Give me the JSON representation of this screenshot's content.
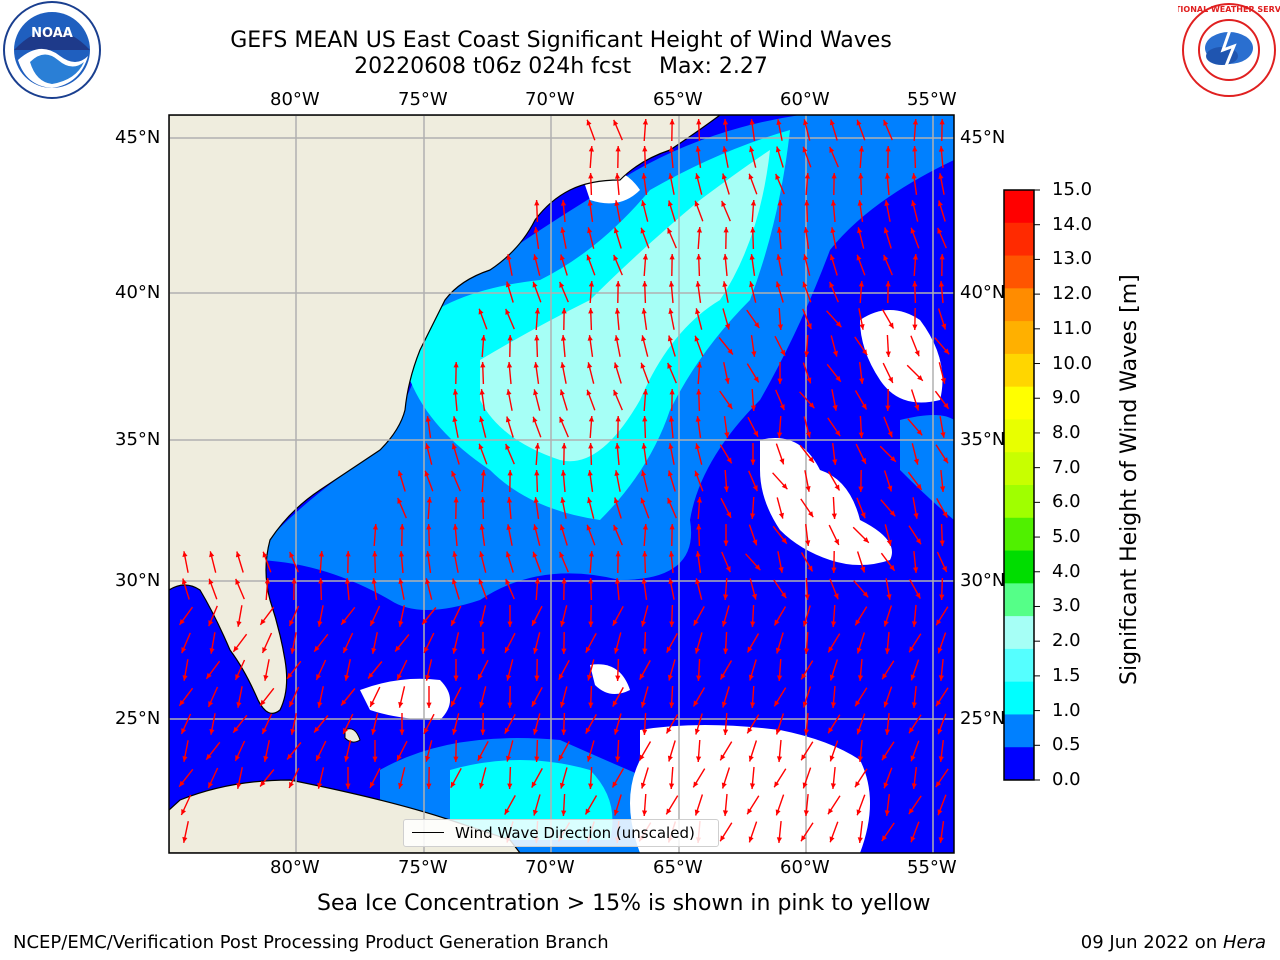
{
  "header": {
    "title_line1": "GEFS MEAN US East Coast Significant Height of Wind Waves",
    "title_line2": "20220608 t06z 024h fcst    Max: 2.27"
  },
  "map": {
    "lon_labels": [
      "80°W",
      "75°W",
      "70°W",
      "65°W",
      "60°W",
      "55°W"
    ],
    "lat_labels": [
      "45°N",
      "40°N",
      "35°N",
      "30°N",
      "25°N"
    ],
    "colors": {
      "land": "#efedde",
      "ocean_low": "#0000ff",
      "ocean_mid": "#0080ff",
      "ocean_high": "#00ffff",
      "ocean_peak": "#a6fff6",
      "arrow": "#ff0000"
    },
    "legend_label": "Wind Wave Direction (unscaled)"
  },
  "colorbar": {
    "title": "Significant Height of Wind Waves [m]",
    "ticks": [
      "15.0",
      "14.0",
      "13.0",
      "12.0",
      "11.0",
      "10.0",
      "9.0",
      "8.0",
      "7.0",
      "6.0",
      "5.0",
      "4.0",
      "3.0",
      "2.0",
      "1.5",
      "1.0",
      "0.5",
      "0.0"
    ],
    "colors": [
      "#ff0000",
      "#ff2a00",
      "#ff5500",
      "#ff8c00",
      "#ffb000",
      "#ffd600",
      "#ffff00",
      "#e8ff00",
      "#c8ff00",
      "#a0ff00",
      "#50f000",
      "#00dd00",
      "#55ff88",
      "#a6fff6",
      "#55ffff",
      "#00ffff",
      "#0080ff",
      "#0000ff"
    ]
  },
  "notes": {
    "sea_ice": "Sea Ice Concentration > 15% is shown in pink to yellow"
  },
  "footer": {
    "left": "NCEP/EMC/Verification Post Processing Product Generation Branch",
    "right_prefix": "09 Jun 2022 on ",
    "right_host": "Hera"
  },
  "logos": {
    "noaa_text": "NOAA",
    "nws_text": "NATIONAL WEATHER SERVICE"
  }
}
